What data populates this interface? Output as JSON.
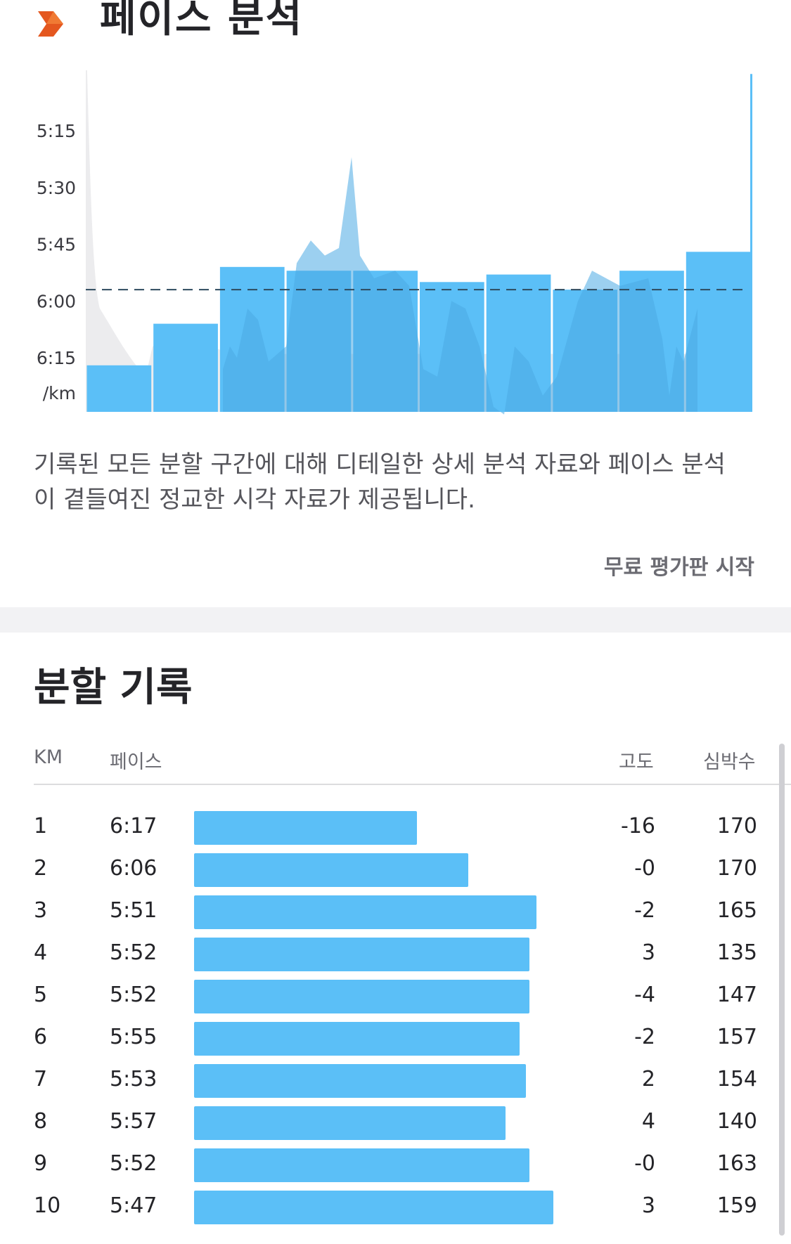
{
  "pace_analysis": {
    "title": "페이스 분석",
    "logo_icon": "chevron-right-icon",
    "description": "기록된 모든 분할 구간에 대해 디테일한 상세 분석 자료와 페이스 분석이 곁들여진 정교한 시각 자료가 제공됩니다.",
    "trial_link": "무료 평가판 시작"
  },
  "chart_data": {
    "type": "bar",
    "categories": [
      "1",
      "2",
      "3",
      "4",
      "5",
      "6",
      "7",
      "8",
      "9",
      "10"
    ],
    "values_sec_per_km": [
      377,
      366,
      351,
      352,
      352,
      355,
      353,
      357,
      352,
      347
    ],
    "y_ticks": [
      "5:15",
      "5:30",
      "5:45",
      "6:00",
      "6:15"
    ],
    "y_unit": "/km",
    "y_range_sec": [
      300,
      390
    ],
    "y_inverted": true,
    "average_line_sec": 357,
    "colors": {
      "bar": "#5bbff7",
      "overlay": "#4aa9e4",
      "elevation": "#ececee",
      "avg_line": "#2e4a5e"
    }
  },
  "splits": {
    "title": "분할 기록",
    "headers": {
      "km": "KM",
      "pace": "페이스",
      "elevation": "고도",
      "heart_rate": "심박수"
    },
    "rows": [
      {
        "km": "1",
        "pace": "6:17",
        "elevation": "-16",
        "heart_rate": "170",
        "bar_fraction": 0.65
      },
      {
        "km": "2",
        "pace": "6:06",
        "elevation": "-0",
        "heart_rate": "170",
        "bar_fraction": 0.8
      },
      {
        "km": "3",
        "pace": "5:51",
        "elevation": "-2",
        "heart_rate": "165",
        "bar_fraction": 1.0
      },
      {
        "km": "4",
        "pace": "5:52",
        "elevation": "3",
        "heart_rate": "135",
        "bar_fraction": 0.98
      },
      {
        "km": "5",
        "pace": "5:52",
        "elevation": "-4",
        "heart_rate": "147",
        "bar_fraction": 0.98
      },
      {
        "km": "6",
        "pace": "5:55",
        "elevation": "-2",
        "heart_rate": "157",
        "bar_fraction": 0.95
      },
      {
        "km": "7",
        "pace": "5:53",
        "elevation": "2",
        "heart_rate": "154",
        "bar_fraction": 0.97
      },
      {
        "km": "8",
        "pace": "5:57",
        "elevation": "4",
        "heart_rate": "140",
        "bar_fraction": 0.91
      },
      {
        "km": "9",
        "pace": "5:52",
        "elevation": "-0",
        "heart_rate": "163",
        "bar_fraction": 0.98
      },
      {
        "km": "10",
        "pace": "5:47",
        "elevation": "3",
        "heart_rate": "159",
        "bar_fraction": 1.05
      }
    ]
  }
}
